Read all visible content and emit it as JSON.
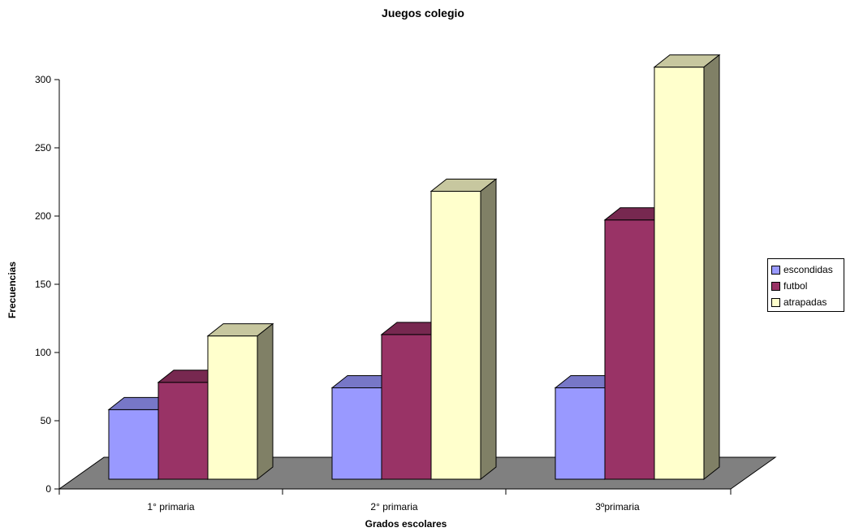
{
  "chart_data": {
    "type": "bar",
    "title": "Juegos colegio",
    "xlabel": "Grados escolares",
    "ylabel": "Frecuencias",
    "categories": [
      "1° primaria",
      "2° primaria",
      "3ºprimaria"
    ],
    "series": [
      {
        "name": "escondidas",
        "values": [
          51,
          67,
          67
        ],
        "color": "#9999ff"
      },
      {
        "name": "futbol",
        "values": [
          71,
          106,
          190
        ],
        "color": "#993366"
      },
      {
        "name": "atrapadas",
        "values": [
          105,
          211,
          302
        ],
        "color": "#ffffcc"
      }
    ],
    "ylim": [
      0,
      300
    ],
    "yticks": [
      0,
      50,
      100,
      150,
      200,
      250,
      300
    ],
    "three_d": true,
    "floor_color": "#808080",
    "legend_position": "right"
  }
}
